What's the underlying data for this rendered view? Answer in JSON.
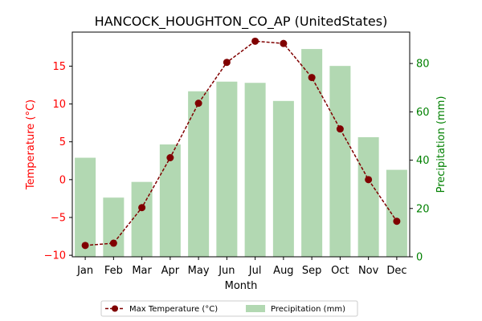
{
  "chart_data": {
    "type": "bar+line",
    "title": "HANCOCK_HOUGHTON_CO_AP (UnitedStates)",
    "xlabel": "Month",
    "ylabel_left": "Temperature (°C)",
    "ylabel_right": "Precipitation (mm)",
    "categories": [
      "Jan",
      "Feb",
      "Mar",
      "Apr",
      "May",
      "Jun",
      "Jul",
      "Aug",
      "Sep",
      "Oct",
      "Nov",
      "Dec"
    ],
    "ylim_left": [
      -10.2,
      19.5
    ],
    "ylim_right": [
      0,
      93
    ],
    "yticks_left": [
      -10,
      -5,
      0,
      5,
      10,
      15
    ],
    "yticks_right": [
      0,
      20,
      40,
      60,
      80
    ],
    "series": [
      {
        "name": "Max Temperature (°C)",
        "type": "line",
        "axis": "left",
        "values": [
          -8.7,
          -8.4,
          -3.7,
          2.9,
          10.1,
          15.5,
          18.3,
          18.0,
          13.5,
          6.7,
          0.0,
          -5.5
        ],
        "color": "#800000"
      },
      {
        "name": "Precipitation (mm)",
        "type": "bar",
        "axis": "right",
        "values": [
          41,
          24.5,
          31,
          46.5,
          68.5,
          72.5,
          72,
          64.5,
          86,
          79,
          49.5,
          36
        ],
        "color": "#b2d8b2"
      }
    ],
    "colors": {
      "left_axis": "#ff0000",
      "right_axis": "#008000"
    },
    "legend": {
      "position": "bottom-center",
      "ncol": 2
    }
  }
}
